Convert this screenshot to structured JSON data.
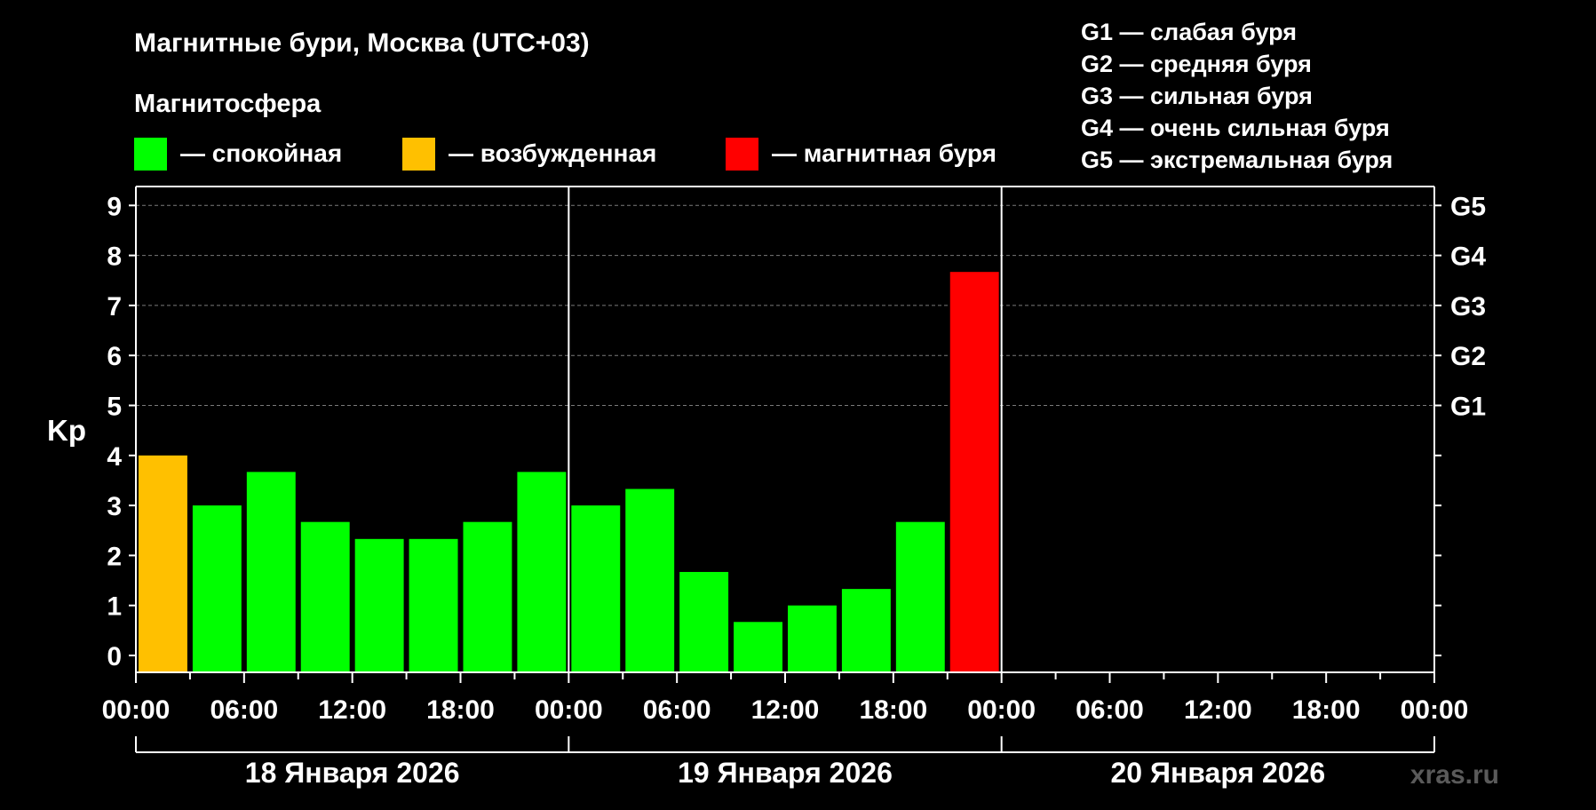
{
  "chart_data": {
    "type": "bar",
    "title": "Магнитные бури, Москва (UTC+03)",
    "ylabel": "Kp",
    "ylim": [
      0,
      9
    ],
    "yticks": [
      0,
      1,
      2,
      3,
      4,
      5,
      6,
      7,
      8,
      9
    ],
    "right_ticks": [
      {
        "value": 5,
        "label": "G1"
      },
      {
        "value": 6,
        "label": "G2"
      },
      {
        "value": 7,
        "label": "G3"
      },
      {
        "value": 8,
        "label": "G4"
      },
      {
        "value": 9,
        "label": "G5"
      }
    ],
    "xlim_hours": [
      0,
      72
    ],
    "x_tick_labels": [
      "00:00",
      "06:00",
      "12:00",
      "18:00",
      "00:00",
      "06:00",
      "12:00",
      "18:00",
      "00:00",
      "06:00",
      "12:00",
      "18:00",
      "00:00"
    ],
    "days": [
      "18 Января 2026",
      "19 Января 2026",
      "20 Января 2026"
    ],
    "legend_title": "Магнитосфера",
    "legend": [
      {
        "label": "— спокойная",
        "color": "#00ff00"
      },
      {
        "label": "— возбужденная",
        "color": "#ffc000"
      },
      {
        "label": "— магнитная буря",
        "color": "#ff0000"
      }
    ],
    "scale_legend": [
      "G1 — слабая буря",
      "G2 — средняя буря",
      "G3 — сильная буря",
      "G4 — очень сильная буря",
      "G5 — экстремальная буря"
    ],
    "bars": [
      {
        "start": 0,
        "value": 4.0,
        "color": "#ffc000"
      },
      {
        "start": 3,
        "value": 3.0,
        "color": "#00ff00"
      },
      {
        "start": 6,
        "value": 3.67,
        "color": "#00ff00"
      },
      {
        "start": 9,
        "value": 2.67,
        "color": "#00ff00"
      },
      {
        "start": 12,
        "value": 2.33,
        "color": "#00ff00"
      },
      {
        "start": 15,
        "value": 2.33,
        "color": "#00ff00"
      },
      {
        "start": 18,
        "value": 2.67,
        "color": "#00ff00"
      },
      {
        "start": 21,
        "value": 3.67,
        "color": "#00ff00"
      },
      {
        "start": 24,
        "value": 3.0,
        "color": "#00ff00"
      },
      {
        "start": 27,
        "value": 3.33,
        "color": "#00ff00"
      },
      {
        "start": 30,
        "value": 1.67,
        "color": "#00ff00"
      },
      {
        "start": 33,
        "value": 0.67,
        "color": "#00ff00"
      },
      {
        "start": 36,
        "value": 1.0,
        "color": "#00ff00"
      },
      {
        "start": 39,
        "value": 1.33,
        "color": "#00ff00"
      },
      {
        "start": 42,
        "value": 2.67,
        "color": "#00ff00"
      },
      {
        "start": 45,
        "value": 7.67,
        "color": "#ff0000"
      }
    ],
    "watermark": "xras.ru"
  }
}
